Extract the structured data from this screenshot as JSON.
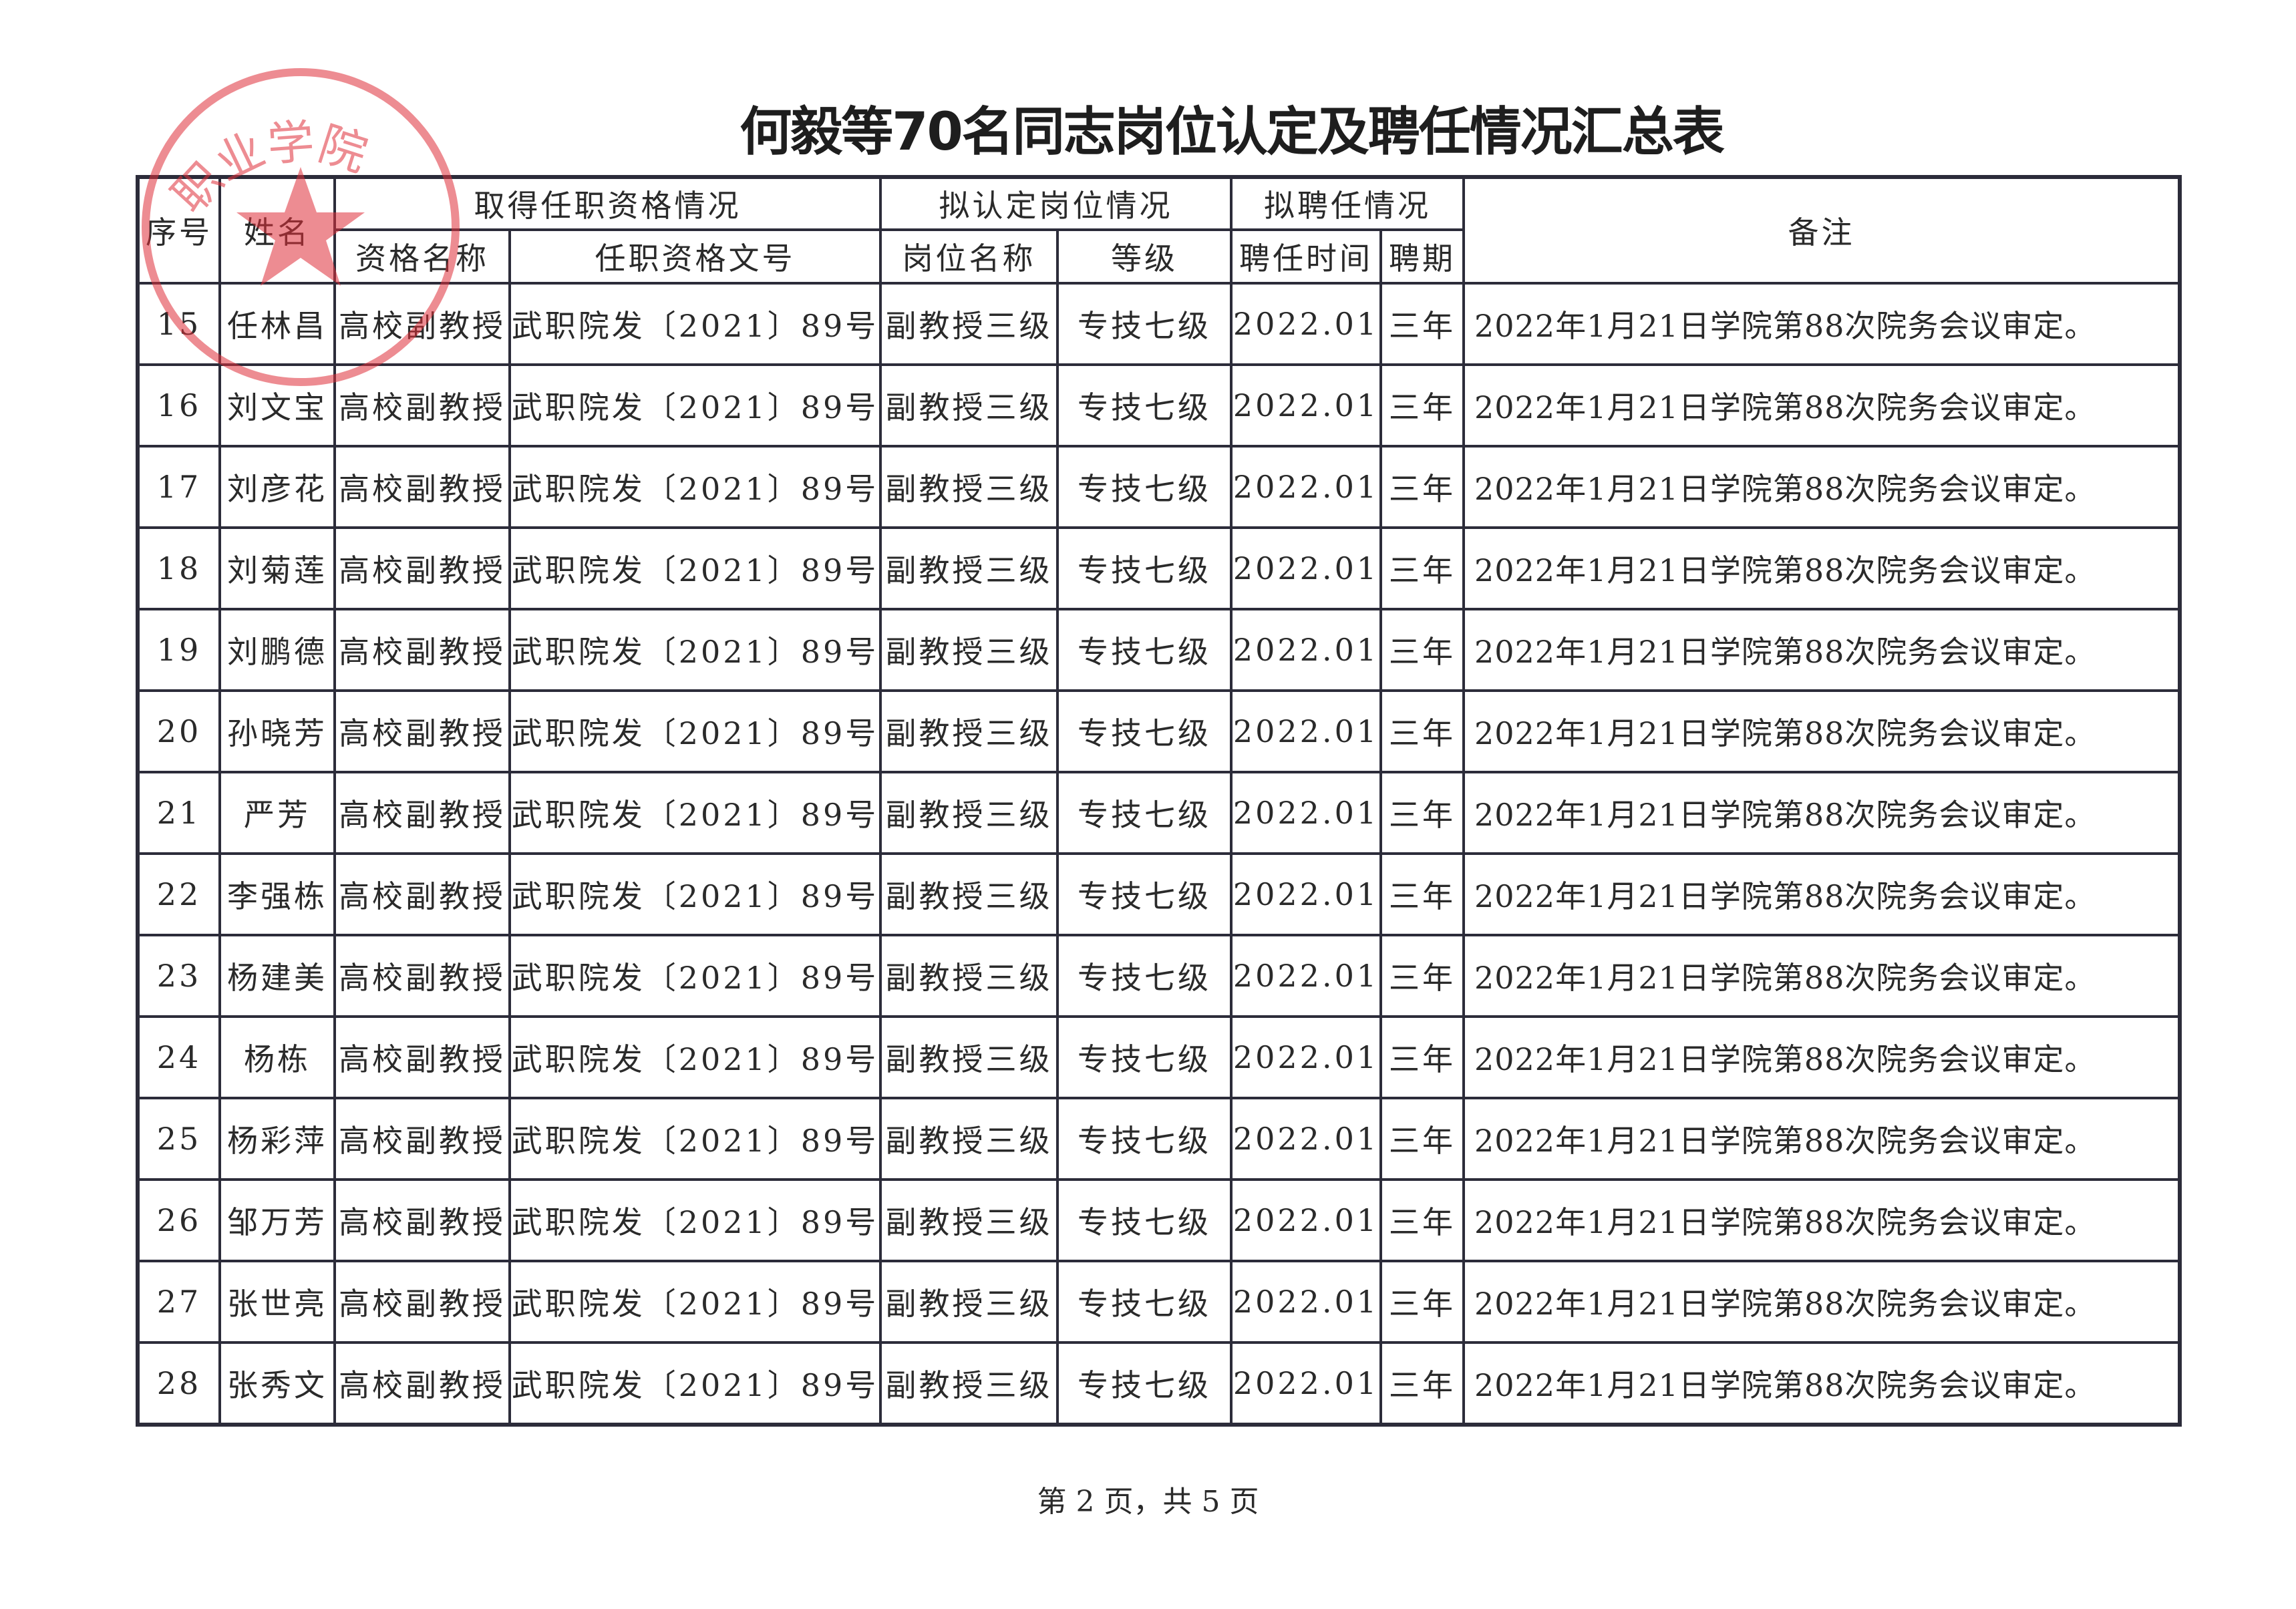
{
  "title": "何毅等70名同志岗位认定及聘任情况汇总表",
  "stamp": {
    "text": "职业学院",
    "color": "#e0303a"
  },
  "header": {
    "seq": "序号",
    "name": "姓名",
    "qual_group": "取得任职资格情况",
    "qual_name": "资格名称",
    "qual_doc": "任职资格文号",
    "post_group": "拟认定岗位情况",
    "post_name": "岗位名称",
    "post_level": "等级",
    "hire_group": "拟聘任情况",
    "hire_time": "聘任时间",
    "hire_term": "聘期",
    "note": "备注"
  },
  "rows": [
    {
      "seq": "15",
      "name": "任林昌",
      "qual": "高校副教授",
      "doc": "武职院发〔2021〕89号",
      "post": "副教授三级",
      "level": "专技七级",
      "time": "2022.01",
      "term": "三年",
      "note": "2022年1月21日学院第88次院务会议审定。"
    },
    {
      "seq": "16",
      "name": "刘文宝",
      "qual": "高校副教授",
      "doc": "武职院发〔2021〕89号",
      "post": "副教授三级",
      "level": "专技七级",
      "time": "2022.01",
      "term": "三年",
      "note": "2022年1月21日学院第88次院务会议审定。"
    },
    {
      "seq": "17",
      "name": "刘彦花",
      "qual": "高校副教授",
      "doc": "武职院发〔2021〕89号",
      "post": "副教授三级",
      "level": "专技七级",
      "time": "2022.01",
      "term": "三年",
      "note": "2022年1月21日学院第88次院务会议审定。"
    },
    {
      "seq": "18",
      "name": "刘菊莲",
      "qual": "高校副教授",
      "doc": "武职院发〔2021〕89号",
      "post": "副教授三级",
      "level": "专技七级",
      "time": "2022.01",
      "term": "三年",
      "note": "2022年1月21日学院第88次院务会议审定。"
    },
    {
      "seq": "19",
      "name": "刘鹏德",
      "qual": "高校副教授",
      "doc": "武职院发〔2021〕89号",
      "post": "副教授三级",
      "level": "专技七级",
      "time": "2022.01",
      "term": "三年",
      "note": "2022年1月21日学院第88次院务会议审定。"
    },
    {
      "seq": "20",
      "name": "孙晓芳",
      "qual": "高校副教授",
      "doc": "武职院发〔2021〕89号",
      "post": "副教授三级",
      "level": "专技七级",
      "time": "2022.01",
      "term": "三年",
      "note": "2022年1月21日学院第88次院务会议审定。"
    },
    {
      "seq": "21",
      "name": "严芳",
      "qual": "高校副教授",
      "doc": "武职院发〔2021〕89号",
      "post": "副教授三级",
      "level": "专技七级",
      "time": "2022.01",
      "term": "三年",
      "note": "2022年1月21日学院第88次院务会议审定。"
    },
    {
      "seq": "22",
      "name": "李强栋",
      "qual": "高校副教授",
      "doc": "武职院发〔2021〕89号",
      "post": "副教授三级",
      "level": "专技七级",
      "time": "2022.01",
      "term": "三年",
      "note": "2022年1月21日学院第88次院务会议审定。"
    },
    {
      "seq": "23",
      "name": "杨建美",
      "qual": "高校副教授",
      "doc": "武职院发〔2021〕89号",
      "post": "副教授三级",
      "level": "专技七级",
      "time": "2022.01",
      "term": "三年",
      "note": "2022年1月21日学院第88次院务会议审定。"
    },
    {
      "seq": "24",
      "name": "杨栋",
      "qual": "高校副教授",
      "doc": "武职院发〔2021〕89号",
      "post": "副教授三级",
      "level": "专技七级",
      "time": "2022.01",
      "term": "三年",
      "note": "2022年1月21日学院第88次院务会议审定。"
    },
    {
      "seq": "25",
      "name": "杨彩萍",
      "qual": "高校副教授",
      "doc": "武职院发〔2021〕89号",
      "post": "副教授三级",
      "level": "专技七级",
      "time": "2022.01",
      "term": "三年",
      "note": "2022年1月21日学院第88次院务会议审定。"
    },
    {
      "seq": "26",
      "name": "邹万芳",
      "qual": "高校副教授",
      "doc": "武职院发〔2021〕89号",
      "post": "副教授三级",
      "level": "专技七级",
      "time": "2022.01",
      "term": "三年",
      "note": "2022年1月21日学院第88次院务会议审定。"
    },
    {
      "seq": "27",
      "name": "张世亮",
      "qual": "高校副教授",
      "doc": "武职院发〔2021〕89号",
      "post": "副教授三级",
      "level": "专技七级",
      "time": "2022.01",
      "term": "三年",
      "note": "2022年1月21日学院第88次院务会议审定。"
    },
    {
      "seq": "28",
      "name": "张秀文",
      "qual": "高校副教授",
      "doc": "武职院发〔2021〕89号",
      "post": "副教授三级",
      "level": "专技七级",
      "time": "2022.01",
      "term": "三年",
      "note": "2022年1月21日学院第88次院务会议审定。"
    }
  ],
  "footer": "第 2 页，共 5 页"
}
